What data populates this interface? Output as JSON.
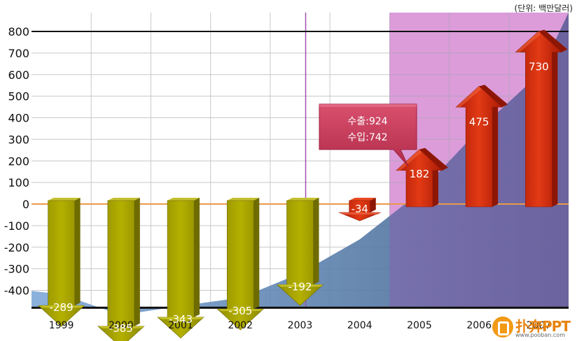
{
  "unit_label": "(단위: 백만달러)",
  "tooltip": {
    "line1": "수출:924",
    "line2": "수입:742"
  },
  "watermark": {
    "brand": "扑奔PPT",
    "url": "www.pooban.com"
  },
  "colors": {
    "down_arrow": "#a4a000",
    "up_arrow": "#d42a0c",
    "area": "#6f8fb6",
    "highlight_band": "#ff9fe0",
    "tooltip": "#c73a5a",
    "zero_line": "#e89a4a"
  },
  "chart_data": {
    "type": "bar",
    "categories": [
      "1999",
      "2000",
      "2001",
      "2002",
      "2003",
      "2004",
      "2005",
      "2006",
      "2007"
    ],
    "values": [
      -289,
      -385,
      -343,
      -305,
      -192,
      -34,
      182,
      475,
      730
    ],
    "yticks": [
      800,
      700,
      600,
      500,
      400,
      300,
      200,
      100,
      0,
      -100,
      -200,
      -300,
      -400
    ],
    "ylim": [
      -500,
      800
    ],
    "grid": true,
    "highlight_from": "2005",
    "title": "",
    "xlabel": "",
    "ylabel": ""
  }
}
